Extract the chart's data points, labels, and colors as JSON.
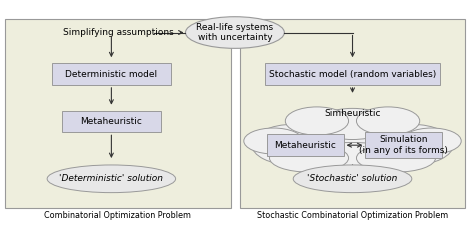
{
  "bg_color": "#eeeedd",
  "box_color": "#d8d8e8",
  "box_edge": "#999999",
  "ellipse_fc": "#e8e8e8",
  "ellipse_ec": "#999999",
  "arrow_color": "#333333",
  "fig_bg": "#ffffff",
  "title_left": "Combinatorial Optimization Problem",
  "title_right": "Stochastic Combinatorial Optimization Problem",
  "top_ellipse": "Real-life systems\nwith uncertainty",
  "simplifying": "Simplifying assumptions",
  "det_model": "Deterministic model",
  "metaheuristic_left": "Metaheuristic",
  "det_solution": "'Deterministic' solution",
  "stoch_model": "Stochastic model (random variables)",
  "simheuristic_label": "Simheuristic",
  "metaheuristic_right": "Metaheuristic",
  "simulation": "Simulation\n(in any of its forms)",
  "stoch_solution": "'Stochastic' solution",
  "fs_main": 6.5,
  "fs_title": 5.8
}
